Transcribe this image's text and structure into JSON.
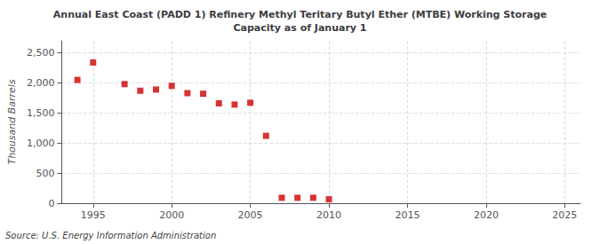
{
  "chart_data": {
    "type": "scatter",
    "title": "Annual East Coast (PADD 1) Refinery Methyl Teritary Butyl Ether (MTBE) Working Storage\nCapacity as of January 1",
    "ylabel": "Thousand Barrels",
    "source": "Source: U.S. Energy Information Administration",
    "x": [
      1994,
      1995,
      1997,
      1998,
      1999,
      2000,
      2001,
      2002,
      2003,
      2004,
      2005,
      2006,
      2007,
      2008,
      2009,
      2010
    ],
    "values": [
      2050,
      2340,
      1980,
      1870,
      1890,
      1950,
      1830,
      1820,
      1660,
      1640,
      1670,
      1120,
      90,
      90,
      90,
      65
    ],
    "color": "#cc0000",
    "marker": "square",
    "xlim": [
      1993,
      2026
    ],
    "xticks": [
      1995,
      2000,
      2005,
      2010,
      2015,
      2020,
      2025
    ],
    "ylim": [
      0,
      2700
    ],
    "yticks": [
      0,
      500,
      {
        "value": 1000,
        "label": "1,000"
      },
      {
        "value": 1500,
        "label": "1,500"
      },
      {
        "value": 2000,
        "label": "2,000"
      },
      {
        "value": 2500,
        "label": "2,500"
      }
    ],
    "grid": true
  }
}
